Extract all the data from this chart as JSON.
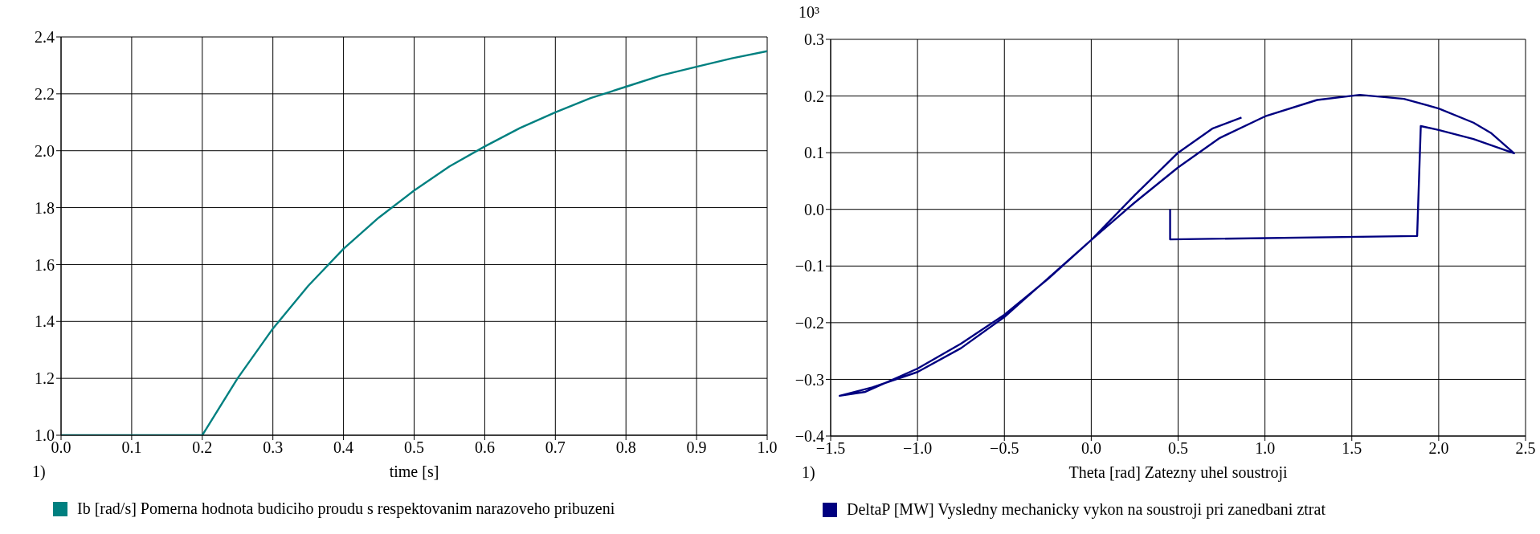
{
  "chart_data": [
    {
      "type": "line",
      "xlabel": "time [s]",
      "xlim": [
        0,
        1
      ],
      "xticks": [
        {
          "value": 0,
          "label": "0.0"
        },
        0.1,
        0.2,
        0.3,
        0.4,
        0.5,
        0.6,
        0.7,
        0.8,
        0.9,
        {
          "value": 1,
          "label": "1.0"
        }
      ],
      "ylim": [
        1.0,
        2.4
      ],
      "yticks": [
        {
          "value": 1,
          "label": "1.0"
        },
        1.2,
        1.4,
        1.6,
        1.8,
        {
          "value": 2,
          "label": "2.0"
        },
        2.2,
        2.4
      ],
      "grid": true,
      "legend": "bottom",
      "annotations": [
        "1)"
      ],
      "series": [
        {
          "name": "Ib [rad/s] Pomerna hodnota budiciho proudu s respektovanim narazoveho pribuzeni",
          "color": "#008080",
          "x": [
            0,
            0.1,
            0.2,
            0.25,
            0.3,
            0.35,
            0.4,
            0.45,
            0.5,
            0.55,
            0.6,
            0.65,
            0.7,
            0.75,
            0.8,
            0.85,
            0.9,
            0.95,
            1.0
          ],
          "values": [
            1.0,
            1.0,
            1.0,
            1.2,
            1.375,
            1.525,
            1.655,
            1.765,
            1.86,
            1.945,
            2.015,
            2.08,
            2.135,
            2.185,
            2.225,
            2.265,
            2.295,
            2.325,
            2.35
          ]
        }
      ]
    },
    {
      "type": "line",
      "xlabel": "Theta [rad] Zatezny uhel soustroji",
      "ylabel": "10³",
      "xlim": [
        -1.5,
        2.5
      ],
      "xticks": [
        -1.5,
        {
          "value": -1,
          "label": "−1.0"
        },
        -0.5,
        {
          "value": 0,
          "label": "0.0"
        },
        0.5,
        {
          "value": 1,
          "label": "1.0"
        },
        1.5,
        {
          "value": 2,
          "label": "2.0"
        },
        2.5
      ],
      "ylim": [
        -0.4,
        0.3
      ],
      "yticks": [
        -0.4,
        -0.3,
        -0.2,
        -0.1,
        {
          "value": 0,
          "label": "0.0"
        },
        0.1,
        0.2,
        0.3
      ],
      "grid": true,
      "legend": "bottom",
      "annotations": [
        "1)"
      ],
      "series": [
        {
          "name": "DeltaP [MW] Vysledny mechanicky vykon na soustroji pri zanedbani ztrat",
          "color": "#000080",
          "x": [
            0.454,
            0.454,
            1.876,
            1.897,
            2.0,
            2.2,
            2.434,
            2.3,
            2.2,
            2.0,
            1.8,
            1.546,
            1.3,
            1.0,
            0.74,
            0.5,
            0.25,
            0.0,
            -0.25,
            -0.5,
            -0.75,
            -1.0,
            -1.26,
            -1.448,
            -1.3,
            -1.0,
            -0.75,
            -0.5,
            -0.25,
            0.0,
            0.25,
            0.5,
            0.7,
            0.865
          ],
          "values": [
            0.0,
            -0.053,
            -0.047,
            0.147,
            0.14,
            0.124,
            0.099,
            0.135,
            0.153,
            0.178,
            0.195,
            0.202,
            0.193,
            0.164,
            0.126,
            0.074,
            0.012,
            -0.054,
            -0.122,
            -0.19,
            -0.245,
            -0.287,
            -0.314,
            -0.329,
            -0.322,
            -0.281,
            -0.237,
            -0.186,
            -0.123,
            -0.054,
            0.025,
            0.1,
            0.143,
            0.162
          ]
        }
      ]
    }
  ]
}
